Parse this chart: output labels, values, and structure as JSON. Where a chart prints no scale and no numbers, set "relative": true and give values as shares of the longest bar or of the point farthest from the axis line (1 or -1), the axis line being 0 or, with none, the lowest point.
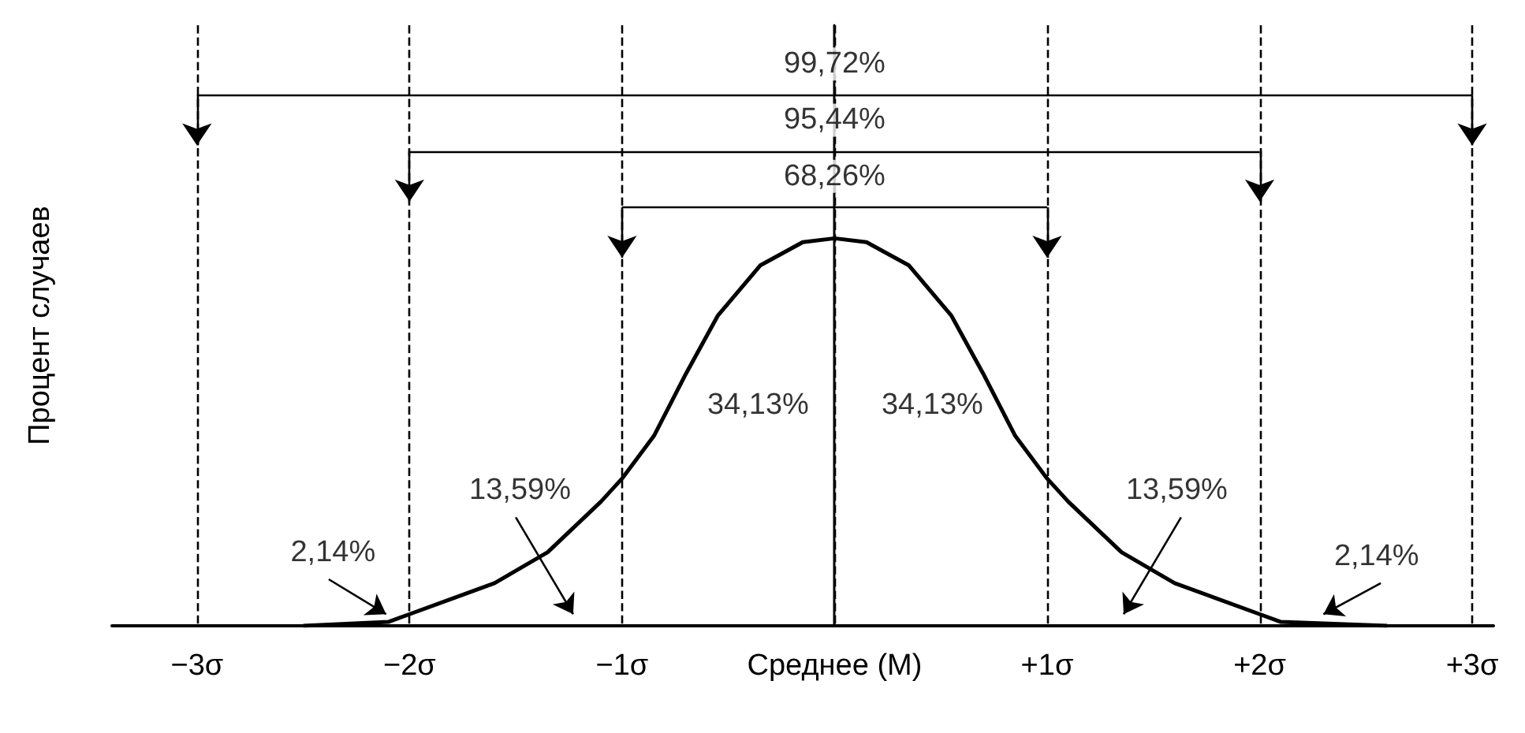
{
  "chart_data": {
    "type": "line",
    "relative": true,
    "ylabel": "Процент случаев",
    "x": [
      -2.5,
      -2.1,
      -2.0,
      -1.6,
      -1.35,
      -1.1,
      -1.0,
      -0.85,
      -0.7,
      -0.55,
      -0.35,
      -0.15,
      0,
      0.15,
      0.35,
      0.55,
      0.7,
      0.85,
      1.0,
      1.1,
      1.35,
      1.6,
      2.0,
      2.1,
      2.6
    ],
    "series": [
      {
        "color": "#000000",
        "values": [
          0.0,
          0.01,
          0.03,
          0.11,
          0.19,
          0.32,
          0.38,
          0.49,
          0.65,
          0.8,
          0.93,
          0.99,
          1,
          0.99,
          0.93,
          0.8,
          0.65,
          0.49,
          0.38,
          0.32,
          0.19,
          0.11,
          0.03,
          0.01,
          0.0
        ]
      }
    ],
    "xlim": [
      -3.4,
      3.1
    ],
    "xticks": [
      {
        "value": -3,
        "label": "−3σ"
      },
      {
        "value": -2,
        "label": "−2σ"
      },
      {
        "value": -1,
        "label": "−1σ"
      },
      {
        "value": 0,
        "label": "Среднее (M)"
      },
      {
        "value": 1,
        "label": "+1σ"
      },
      {
        "value": 2,
        "label": "+2σ"
      },
      {
        "value": 3,
        "label": "+3σ"
      }
    ],
    "annotations": [
      "99,72%",
      "95,44%",
      "68,26%",
      "34,13%",
      "34,13%",
      "13,59%",
      "13,59%",
      "2,14%",
      "2,14%"
    ],
    "grid": "x",
    "marker": "none"
  }
}
